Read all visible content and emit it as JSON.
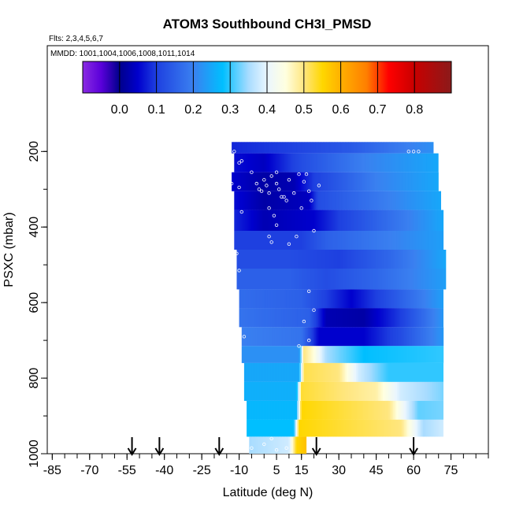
{
  "chart_data": {
    "type": "heatmap",
    "title": "ATOM3 Southbound CH3I_PMSD",
    "flights_text": "Flts: 2,3,4,5,6,7",
    "mmdd_text": "MMDD: 1001,1004,1006,1008,1011,1014",
    "xlabel": "Latitude (deg N)",
    "ylabel": "PSXC (mbar)",
    "xlim": [
      -87,
      90
    ],
    "ylim": [
      1000,
      -80
    ],
    "x_ticks": [
      -85,
      -70,
      -55,
      -40,
      -25,
      -10,
      5,
      15,
      30,
      45,
      60,
      75
    ],
    "x_tick_labels": [
      "-85",
      "-70",
      "-55",
      "-40",
      "-25",
      "-10",
      "5",
      "15",
      "30",
      "45",
      "60",
      "75"
    ],
    "y_ticks": [
      1000,
      800,
      600,
      400,
      200
    ],
    "y_tick_labels": [
      "1000",
      "800",
      "600",
      "400",
      "200"
    ],
    "colorbar": {
      "range": [
        -0.1,
        0.9
      ],
      "ticks": [
        0.0,
        0.1,
        0.2,
        0.3,
        0.4,
        0.5,
        0.6,
        0.7,
        0.8
      ],
      "tick_labels": [
        "0.0",
        "0.1",
        "0.2",
        "0.3",
        "0.4",
        "0.5",
        "0.6",
        "0.7",
        "0.8"
      ],
      "stops": [
        {
          "v": -0.1,
          "c": "#8A2BE2"
        },
        {
          "v": -0.05,
          "c": "#5A00DA"
        },
        {
          "v": 0.0,
          "c": "#00008B"
        },
        {
          "v": 0.05,
          "c": "#0000CD"
        },
        {
          "v": 0.1,
          "c": "#1E40E0"
        },
        {
          "v": 0.2,
          "c": "#3A80F0"
        },
        {
          "v": 0.28,
          "c": "#00BFFF"
        },
        {
          "v": 0.35,
          "c": "#A8DCFF"
        },
        {
          "v": 0.4,
          "c": "#EAF6FF"
        },
        {
          "v": 0.45,
          "c": "#FFFFE0"
        },
        {
          "v": 0.5,
          "c": "#FFE680"
        },
        {
          "v": 0.55,
          "c": "#FFD700"
        },
        {
          "v": 0.6,
          "c": "#FFB000"
        },
        {
          "v": 0.67,
          "c": "#FF7F00"
        },
        {
          "v": 0.73,
          "c": "#FF0000"
        },
        {
          "v": 0.8,
          "c": "#C80000"
        },
        {
          "v": 0.9,
          "c": "#8B1A1A"
        }
      ]
    },
    "arrows_lat": [
      -53,
      -42,
      -18,
      21,
      60
    ],
    "bands": [
      {
        "p_top": 175,
        "p_bot": 205,
        "lat_start": -13,
        "lat_end": 68,
        "knots": [
          [
            -13,
            0.08
          ],
          [
            10,
            0.1
          ],
          [
            35,
            0.14
          ],
          [
            58,
            0.2
          ],
          [
            68,
            0.22
          ]
        ]
      },
      {
        "p_top": 205,
        "p_bot": 255,
        "lat_start": -12,
        "lat_end": 70,
        "knots": [
          [
            -12,
            0.06
          ],
          [
            0,
            0.04
          ],
          [
            15,
            0.12
          ],
          [
            40,
            0.2
          ],
          [
            70,
            0.25
          ]
        ]
      },
      {
        "p_top": 255,
        "p_bot": 305,
        "lat_start": -13,
        "lat_end": 70,
        "knots": [
          [
            -13,
            0.05
          ],
          [
            0,
            0.02
          ],
          [
            12,
            0.03
          ],
          [
            20,
            0.1
          ],
          [
            45,
            0.2
          ],
          [
            70,
            0.25
          ]
        ]
      },
      {
        "p_top": 305,
        "p_bot": 355,
        "lat_start": -12,
        "lat_end": 71,
        "knots": [
          [
            -12,
            0.06
          ],
          [
            0,
            0.02
          ],
          [
            18,
            0.04
          ],
          [
            22,
            0.12
          ],
          [
            50,
            0.2
          ],
          [
            71,
            0.25
          ]
        ]
      },
      {
        "p_top": 355,
        "p_bot": 410,
        "lat_start": -12,
        "lat_end": 72,
        "knots": [
          [
            -12,
            0.08
          ],
          [
            0,
            0.03
          ],
          [
            20,
            0.05
          ],
          [
            30,
            0.1
          ],
          [
            72,
            0.25
          ]
        ]
      },
      {
        "p_top": 410,
        "p_bot": 460,
        "lat_start": -12,
        "lat_end": 72,
        "knots": [
          [
            -12,
            0.1
          ],
          [
            15,
            0.1
          ],
          [
            25,
            0.15
          ],
          [
            72,
            0.24
          ]
        ]
      },
      {
        "p_top": 460,
        "p_bot": 510,
        "lat_start": -11,
        "lat_end": 73,
        "knots": [
          [
            -11,
            0.12
          ],
          [
            10,
            0.12
          ],
          [
            30,
            0.1
          ],
          [
            50,
            0.16
          ],
          [
            73,
            0.25
          ]
        ]
      },
      {
        "p_top": 510,
        "p_bot": 565,
        "lat_start": -11,
        "lat_end": 73,
        "knots": [
          [
            -11,
            0.15
          ],
          [
            10,
            0.15
          ],
          [
            25,
            0.12
          ],
          [
            45,
            0.16
          ],
          [
            73,
            0.24
          ]
        ]
      },
      {
        "p_top": 565,
        "p_bot": 615,
        "lat_start": -10,
        "lat_end": 72,
        "knots": [
          [
            -10,
            0.17
          ],
          [
            15,
            0.15
          ],
          [
            35,
            0.05
          ],
          [
            45,
            0.1
          ],
          [
            72,
            0.24
          ]
        ]
      },
      {
        "p_top": 615,
        "p_bot": 665,
        "lat_start": -10,
        "lat_end": 72,
        "knots": [
          [
            -10,
            0.18
          ],
          [
            18,
            0.15
          ],
          [
            25,
            0.03
          ],
          [
            40,
            0.02
          ],
          [
            55,
            0.1
          ],
          [
            72,
            0.23
          ]
        ]
      },
      {
        "p_top": 665,
        "p_bot": 715,
        "lat_start": -9,
        "lat_end": 72,
        "knots": [
          [
            -9,
            0.2
          ],
          [
            15,
            0.18
          ],
          [
            22,
            0.05
          ],
          [
            40,
            0.05
          ],
          [
            55,
            0.12
          ],
          [
            72,
            0.23
          ]
        ]
      },
      {
        "p_top": 715,
        "p_bot": 760,
        "lat_start": -9,
        "lat_end": 72,
        "knots": [
          [
            -9,
            0.22
          ],
          [
            14,
            0.22
          ],
          [
            16,
            0.5
          ],
          [
            20,
            0.45
          ],
          [
            25,
            0.35
          ],
          [
            40,
            0.28
          ],
          [
            72,
            0.3
          ]
        ]
      },
      {
        "p_top": 760,
        "p_bot": 810,
        "lat_start": -8,
        "lat_end": 72,
        "knots": [
          [
            -8,
            0.25
          ],
          [
            14,
            0.25
          ],
          [
            16,
            0.52
          ],
          [
            30,
            0.5
          ],
          [
            38,
            0.38
          ],
          [
            50,
            0.3
          ],
          [
            72,
            0.3
          ]
        ]
      },
      {
        "p_top": 810,
        "p_bot": 860,
        "lat_start": -8,
        "lat_end": 72,
        "knots": [
          [
            -8,
            0.26
          ],
          [
            13,
            0.26
          ],
          [
            15,
            0.53
          ],
          [
            45,
            0.48
          ],
          [
            55,
            0.38
          ],
          [
            72,
            0.33
          ]
        ]
      },
      {
        "p_top": 860,
        "p_bot": 910,
        "lat_start": -7,
        "lat_end": 72,
        "knots": [
          [
            -7,
            0.27
          ],
          [
            13,
            0.27
          ],
          [
            15,
            0.55
          ],
          [
            50,
            0.5
          ],
          [
            62,
            0.32
          ],
          [
            72,
            0.33
          ]
        ]
      },
      {
        "p_top": 910,
        "p_bot": 955,
        "lat_start": -7,
        "lat_end": 72,
        "knots": [
          [
            -7,
            0.28
          ],
          [
            12,
            0.28
          ],
          [
            14,
            0.55
          ],
          [
            55,
            0.5
          ],
          [
            64,
            0.35
          ],
          [
            72,
            0.38
          ]
        ]
      },
      {
        "p_top": 955,
        "p_bot": 1000,
        "lat_start": -6,
        "lat_end": 17,
        "knots": [
          [
            -6,
            0.35
          ],
          [
            10,
            0.38
          ],
          [
            13,
            0.55
          ],
          [
            17,
            0.58
          ]
        ]
      }
    ],
    "points": [
      [
        -12,
        200
      ],
      [
        -10,
        230
      ],
      [
        -9,
        225
      ],
      [
        -13,
        285
      ],
      [
        -10,
        295
      ],
      [
        -9,
        360
      ],
      [
        -11,
        470
      ],
      [
        -10,
        515
      ],
      [
        -8,
        690
      ],
      [
        -5,
        255
      ],
      [
        -3,
        285
      ],
      [
        -2,
        300
      ],
      [
        0,
        275
      ],
      [
        1,
        290
      ],
      [
        2,
        310
      ],
      [
        2,
        350
      ],
      [
        3,
        265
      ],
      [
        4,
        370
      ],
      [
        5,
        255
      ],
      [
        5,
        285
      ],
      [
        6,
        300
      ],
      [
        7,
        320
      ],
      [
        9,
        330
      ],
      [
        10,
        275
      ],
      [
        12,
        310
      ],
      [
        13,
        425
      ],
      [
        14,
        260
      ],
      [
        15,
        350
      ],
      [
        16,
        280
      ],
      [
        17,
        260
      ],
      [
        18,
        305
      ],
      [
        19,
        330
      ],
      [
        20,
        410
      ],
      [
        22,
        290
      ],
      [
        8,
        320
      ],
      [
        10,
        445
      ],
      [
        3,
        440
      ],
      [
        5,
        395
      ],
      [
        -1,
        305
      ],
      [
        2,
        425
      ],
      [
        18,
        570
      ],
      [
        20,
        620
      ],
      [
        16,
        650
      ],
      [
        18,
        700
      ],
      [
        14,
        715
      ],
      [
        -5,
        985
      ],
      [
        0,
        975
      ],
      [
        3,
        960
      ],
      [
        5,
        990
      ],
      [
        9,
        985
      ],
      [
        58,
        200
      ],
      [
        60,
        200
      ],
      [
        62,
        200
      ]
    ]
  }
}
